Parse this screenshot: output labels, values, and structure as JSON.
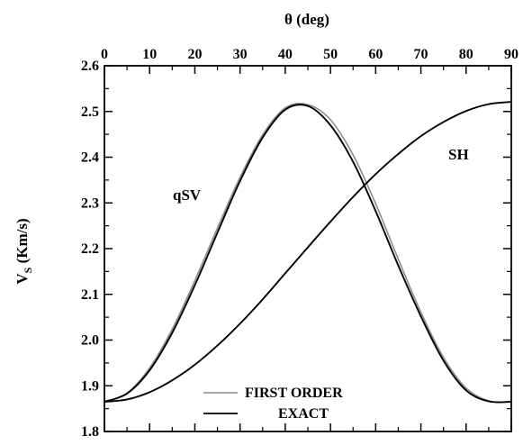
{
  "chart_data": {
    "type": "line",
    "xlabel": "θ (deg)",
    "ylabel": "V",
    "ylabel_sub": "S",
    "ylabel_unit": " (Km/s)",
    "xlim": [
      0,
      90
    ],
    "ylim": [
      1.8,
      2.6
    ],
    "x_ticks": [
      0,
      10,
      20,
      30,
      40,
      50,
      60,
      70,
      80,
      90
    ],
    "y_ticks": [
      "1.8",
      "1.9",
      "2.0",
      "2.1",
      "2.2",
      "2.3",
      "2.4",
      "2.5",
      "2.6"
    ],
    "grid": false,
    "legend_position": "bottom-center",
    "annotations": [
      {
        "text": "qSV"
      },
      {
        "text": "SH"
      }
    ],
    "series": [
      {
        "name": "FIRST ORDER",
        "color": "#8c8c8c",
        "x": [
          0,
          5,
          10,
          15,
          20,
          25,
          30,
          35,
          40,
          45,
          50,
          55,
          60,
          65,
          70,
          75,
          80,
          85,
          90
        ],
        "y": [
          1.865,
          1.884,
          1.939,
          2.024,
          2.13,
          2.245,
          2.356,
          2.449,
          2.508,
          2.515,
          2.482,
          2.405,
          2.298,
          2.177,
          2.061,
          1.962,
          1.895,
          1.867,
          1.865
        ]
      },
      {
        "name": "EXACT",
        "color": "#000000",
        "x": [
          0,
          5,
          10,
          15,
          20,
          25,
          30,
          35,
          40,
          45,
          50,
          55,
          60,
          65,
          70,
          75,
          80,
          85,
          90
        ],
        "y": [
          1.865,
          1.883,
          1.934,
          2.016,
          2.12,
          2.235,
          2.348,
          2.443,
          2.504,
          2.512,
          2.47,
          2.39,
          2.282,
          2.163,
          2.052,
          1.955,
          1.89,
          1.866,
          1.865
        ]
      },
      {
        "name": "",
        "color": "#000000",
        "x": [
          0,
          5,
          10,
          15,
          20,
          25,
          30,
          35,
          40,
          45,
          50,
          55,
          60,
          65,
          70,
          75,
          80,
          85,
          90
        ],
        "y": [
          1.865,
          1.87,
          1.886,
          1.912,
          1.946,
          1.988,
          2.036,
          2.089,
          2.146,
          2.203,
          2.259,
          2.313,
          2.363,
          2.407,
          2.446,
          2.477,
          2.501,
          2.516,
          2.521
        ]
      }
    ]
  }
}
